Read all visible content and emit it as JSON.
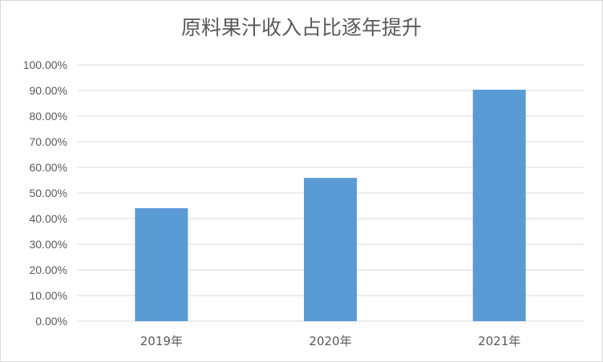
{
  "chart_data": {
    "type": "bar",
    "title": "原料果汁收入占比逐年提升",
    "categories": [
      "2019年",
      "2020年",
      "2021年"
    ],
    "values": [
      44.1,
      55.9,
      90.3
    ],
    "unit": "%",
    "ylim": [
      0,
      100
    ],
    "yticks": [
      "0.00%",
      "10.00%",
      "20.00%",
      "30.00%",
      "40.00%",
      "50.00%",
      "60.00%",
      "70.00%",
      "80.00%",
      "90.00%",
      "100.00%"
    ],
    "grid": true,
    "bar_color": "#5b9bd5",
    "grid_color": "#d9d9d9",
    "text_color": "#595959"
  }
}
